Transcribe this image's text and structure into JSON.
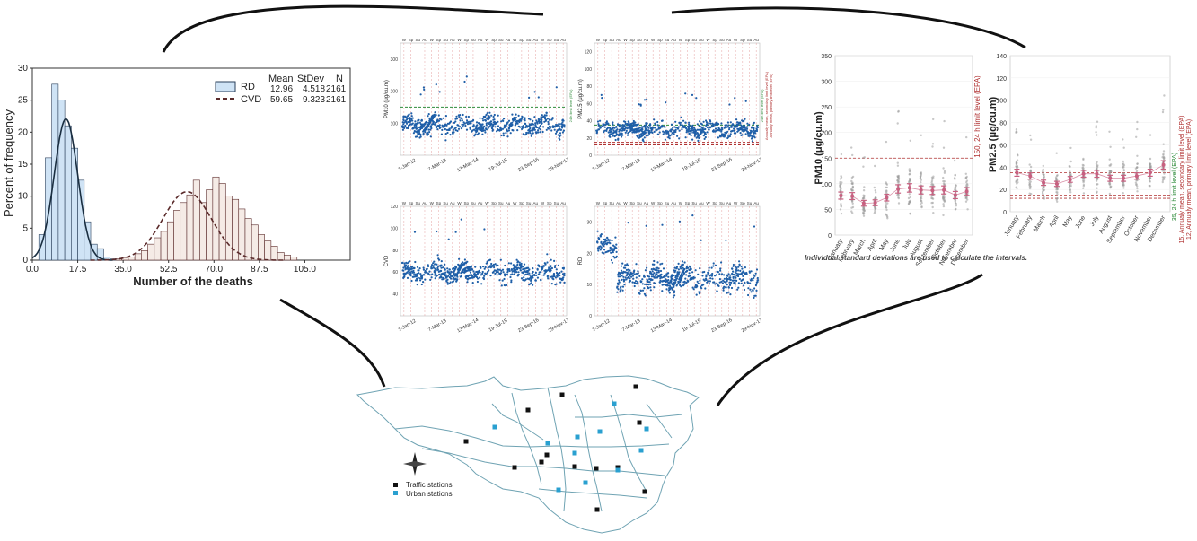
{
  "colors": {
    "rd_fill": "#cfe3f5",
    "rd_edge": "#2a3f5a",
    "cvd_fill": "#f5ebe6",
    "cvd_edge": "#5a2a2a",
    "ts_dots": "#1f5fa8",
    "grid_green": "#2e8b3a",
    "grid_red": "#b03030",
    "box_pink": "#c86080",
    "box_gray": "#9a9a9a",
    "map_line": "#6fa3b3",
    "traffic": "#111111",
    "urban": "#2aa0d0",
    "connector": "#111111"
  },
  "legend_text": {
    "traffic": "Traffic stations",
    "urban": "Urban stations"
  },
  "ts_labels": {
    "x_ticks": [
      "1-Jan-12",
      "7-Mar-13",
      "13-May-14",
      "19-Jul-15",
      "23-Sep-16",
      "29-Nov-17"
    ],
    "season_tags": [
      "W",
      "Sp",
      "Su",
      "Au",
      "W",
      "Sp",
      "Su",
      "Au",
      "W",
      "Sp",
      "Su",
      "Au",
      "W",
      "Sp",
      "Su",
      "Au",
      "W",
      "Sp",
      "Su",
      "Au",
      "W",
      "Sp",
      "Su",
      "Au"
    ],
    "pm10_ref": "24 h limit level (EPA)",
    "pm25_ref_a": "24 h limit level (EPA)",
    "pm25_ref_b": "Annually mean, secondary limit level (EPA)",
    "pm25_ref_c": "Annually mean, primary limit level (EPA)"
  },
  "box_labels": {
    "pm10_ref": "150, 24 h limit level (EPA)",
    "pm25_ref_a": "35, 24 h limit level (EPA)",
    "pm25_ref_b": "15, Annualy mean, secondary limit level (EPA)",
    "pm25_ref_c": "12, Annualy mean, primary limit level (EPA)",
    "note": "Individual standard deviations are used to calculate the intervals."
  },
  "chart_data": [
    {
      "type": "bar",
      "subtype": "histogram",
      "xlabel": "Number of the deaths",
      "ylabel": "Percent of frequency",
      "xticks": [
        "0.0",
        "17.5",
        "35.0",
        "52.5",
        "70.0",
        "87.5",
        "105.0"
      ],
      "xlim": [
        0,
        122.5
      ],
      "ylim": [
        0,
        30
      ],
      "yticks": [
        0,
        5,
        10,
        15,
        20,
        25,
        30
      ],
      "legend_header": [
        "Mean",
        "StDev",
        "N"
      ],
      "series": [
        {
          "name": "RD",
          "mean": "12.96",
          "stdev": "4.518",
          "n": "2161",
          "bin_start": 0,
          "bin_width": 2.5,
          "values": [
            0,
            4,
            16,
            27.5,
            25,
            21,
            17.5,
            12.5,
            6,
            2.5,
            1.8,
            0.5,
            0.2
          ]
        },
        {
          "name": "CVD",
          "mean": "59.65",
          "stdev": "9.323",
          "n": "2161",
          "bin_start": 32,
          "bin_width": 2.5,
          "values": [
            0.2,
            0.4,
            0.5,
            1,
            1.5,
            2.5,
            3.5,
            4.5,
            6,
            7.8,
            9,
            10.2,
            12.5,
            9,
            11,
            13,
            12,
            10,
            9.5,
            8,
            6.5,
            5.5,
            4,
            3,
            2.2,
            1.2,
            0.8,
            0.5
          ]
        }
      ]
    },
    {
      "type": "scatter",
      "ylabel": "PM10 (μg/cu.m)",
      "ylim": [
        0,
        350
      ],
      "yticks": [
        100,
        200,
        300
      ],
      "reference": 150,
      "level": 95,
      "spread": 28
    },
    {
      "type": "scatter",
      "ylabel": "PM2.5 (μg/cu.m)",
      "ylim": [
        0,
        130
      ],
      "yticks": [
        0,
        20,
        40,
        60,
        80,
        100,
        120
      ],
      "references": [
        35,
        15,
        12
      ],
      "level": 30,
      "spread": 9
    },
    {
      "type": "scatter",
      "ylabel": "CVD",
      "ylim": [
        20,
        120
      ],
      "yticks": [
        40,
        60,
        80,
        100,
        120
      ],
      "level": 60,
      "spread": 9
    },
    {
      "type": "scatter",
      "ylabel": "RD",
      "ylim": [
        0,
        35
      ],
      "yticks": [
        0,
        10,
        20,
        30
      ],
      "level": 12,
      "spread": 4
    },
    {
      "type": "scatter",
      "subtype": "interval",
      "ylabel": "PM10 (μg/cu.m)",
      "ylim": [
        0,
        350
      ],
      "yticks": [
        0,
        50,
        100,
        150,
        200,
        250,
        300,
        350
      ],
      "reference": 150,
      "categories": [
        "January",
        "February",
        "March",
        "April",
        "May",
        "June",
        "July",
        "August",
        "September",
        "October",
        "November",
        "December"
      ],
      "means": [
        77,
        76,
        62,
        63,
        73,
        90,
        92,
        88,
        87,
        88,
        78,
        85
      ]
    },
    {
      "type": "scatter",
      "subtype": "interval",
      "ylabel": "PM2.5 (μg/cu.m)",
      "ylim": [
        0,
        140
      ],
      "yticks": [
        0,
        20,
        40,
        60,
        80,
        100,
        120,
        140
      ],
      "references": [
        35,
        15,
        12
      ],
      "categories": [
        "January",
        "February",
        "March",
        "April",
        "May",
        "June",
        "July",
        "August",
        "September",
        "October",
        "November",
        "December"
      ],
      "means": [
        35,
        32,
        26,
        25,
        29,
        34,
        34,
        30,
        30,
        32,
        35,
        42
      ]
    }
  ]
}
